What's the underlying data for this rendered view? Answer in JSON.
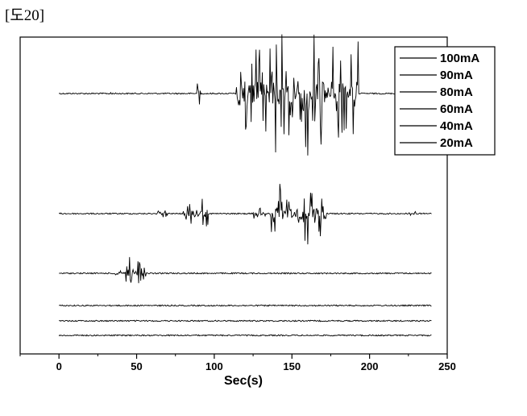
{
  "figure_label": "[도20]",
  "chart_data": {
    "type": "line",
    "title": "",
    "xlabel": "Sec(s)",
    "ylabel": "",
    "xlim": [
      -25,
      250
    ],
    "x_ticks": [
      0,
      50,
      100,
      150,
      200,
      250
    ],
    "y_ticks_shown": false,
    "grid": false,
    "legend_position": "top-right",
    "series": [
      {
        "name": "100mA",
        "color": "#000000",
        "x_range": [
          0,
          240
        ],
        "baseline_level": 6,
        "bursts": [
          {
            "x_start": 33,
            "x_end": 34,
            "amplitude": 0.1
          },
          {
            "x_start": 89,
            "x_end": 91,
            "amplitude": 0.55
          },
          {
            "x_start": 114,
            "x_end": 193,
            "amplitude": 1.6
          }
        ]
      },
      {
        "name": "90mA",
        "color": "#000000",
        "x_range": [
          0,
          240
        ],
        "baseline_level": 5,
        "bursts": [
          {
            "x_start": 63,
            "x_end": 70,
            "amplitude": 0.1
          },
          {
            "x_start": 80,
            "x_end": 96,
            "amplitude": 0.45
          },
          {
            "x_start": 125,
            "x_end": 133,
            "amplitude": 0.15
          },
          {
            "x_start": 136,
            "x_end": 172,
            "amplitude": 0.7
          },
          {
            "x_start": 225,
            "x_end": 230,
            "amplitude": 0.05
          }
        ]
      },
      {
        "name": "80mA",
        "color": "#000000",
        "x_range": [
          0,
          240
        ],
        "baseline_level": 4,
        "bursts": [
          {
            "x_start": 35,
            "x_end": 42,
            "amplitude": 0.1
          },
          {
            "x_start": 42,
            "x_end": 56,
            "amplitude": 0.35
          }
        ]
      },
      {
        "name": "60mA",
        "color": "#000000",
        "x_range": [
          0,
          240
        ],
        "baseline_level": 3,
        "bursts": []
      },
      {
        "name": "40mA",
        "color": "#000000",
        "x_range": [
          0,
          240
        ],
        "baseline_level": 2,
        "bursts": []
      },
      {
        "name": "20mA",
        "color": "#000000",
        "x_range": [
          0,
          240
        ],
        "baseline_level": 1,
        "bursts": []
      }
    ]
  }
}
